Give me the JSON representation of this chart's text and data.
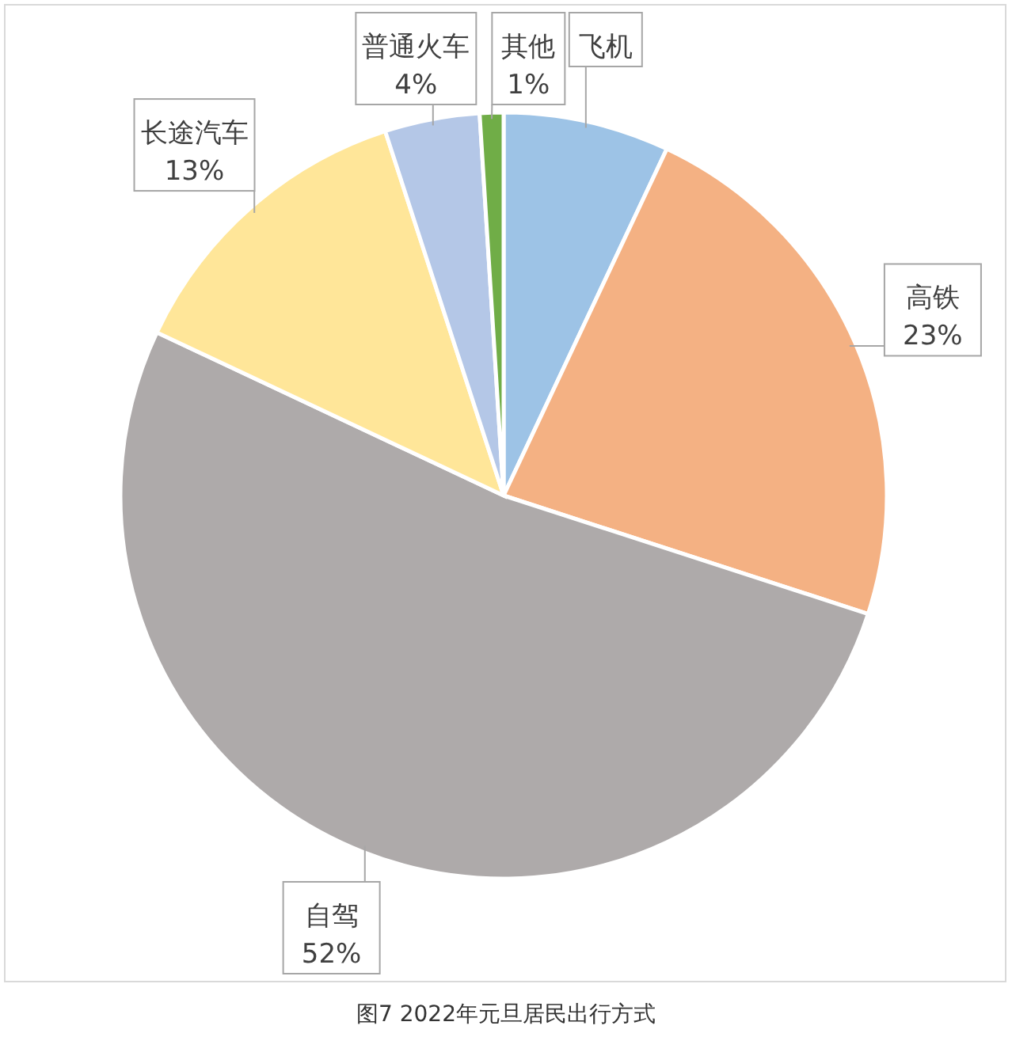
{
  "chart_data": {
    "type": "pie",
    "title": "图7 2022年元旦居民出行方式",
    "categories": [
      "飞机",
      "高铁",
      "自驾",
      "长途汽车",
      "普通火车",
      "其他"
    ],
    "values": [
      7,
      23,
      52,
      13,
      4,
      1
    ],
    "value_labels": [
      null,
      "23%",
      "52%",
      "13%",
      "4%",
      "1%"
    ],
    "colors": [
      "#9dc3e6",
      "#f4b183",
      "#aeaaaa",
      "#ffe699",
      "#b4c7e7",
      "#70ad47"
    ]
  }
}
